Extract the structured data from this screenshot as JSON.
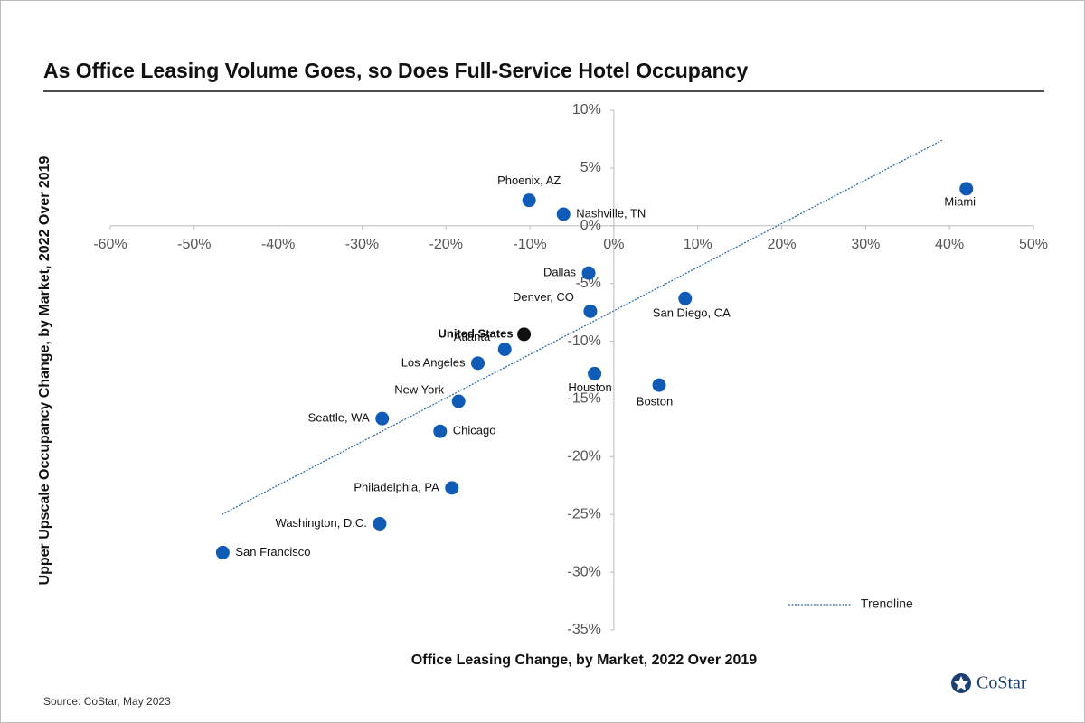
{
  "chart_data": {
    "type": "scatter",
    "title": "As Office Leasing Volume Goes, so Does Full-Service Hotel Occupancy",
    "x_label": "Office Leasing Change, by Market, 2022 Over 2019",
    "y_label": "Upper Upscale Occupancy Change, by Market, 2022 Over 2019",
    "source": "Source: CoStar, May 2023",
    "brand": "CoStar",
    "labels": [
      "Phoenix, AZ",
      "Nashville, TN",
      "Miami",
      "Dallas",
      "San Diego, CA",
      "Denver, CO",
      "United States",
      "Atlanta",
      "Los Angeles",
      "Houston",
      "Boston",
      "New York",
      "Seattle, WA",
      "Chicago",
      "Philadelphia, PA",
      "Washington, D.C.",
      "San Francisco"
    ],
    "x": [
      -10.1,
      -6.0,
      42.0,
      -3.0,
      8.5,
      -2.8,
      -10.7,
      -13.0,
      -16.2,
      -2.3,
      5.4,
      -18.5,
      -27.6,
      -20.7,
      -19.3,
      -27.9,
      -46.6
    ],
    "y": [
      2.2,
      1.0,
      3.2,
      -4.1,
      -6.3,
      -7.4,
      -9.4,
      -10.7,
      -11.9,
      -12.8,
      -13.8,
      -15.2,
      -16.7,
      -17.8,
      -22.7,
      -25.8,
      -28.3
    ],
    "colors": [
      "#0f5bb5",
      "#0f5bb5",
      "#0f5bb5",
      "#0f5bb5",
      "#0f5bb5",
      "#0f5bb5",
      "#111111",
      "#0f5bb5",
      "#0f5bb5",
      "#0f5bb5",
      "#0f5bb5",
      "#0f5bb5",
      "#0f5bb5",
      "#0f5bb5",
      "#0f5bb5",
      "#0f5bb5",
      "#0f5bb5"
    ],
    "trendline": {
      "name": "Trendline",
      "color": "#2f6fa8",
      "x": [
        -46.7,
        39.1
      ],
      "y": [
        -25.0,
        7.4
      ]
    },
    "xlim": [
      -60,
      50
    ],
    "xticks": [
      {
        "value": -60,
        "label": "-60%"
      },
      {
        "value": -50,
        "label": "-50%"
      },
      {
        "value": -40,
        "label": "-40%"
      },
      {
        "value": -30,
        "label": "-30%"
      },
      {
        "value": -20,
        "label": "-20%"
      },
      {
        "value": -10,
        "label": "-10%"
      },
      {
        "value": 0,
        "label": "0%"
      },
      {
        "value": 10,
        "label": "10%"
      },
      {
        "value": 20,
        "label": "20%"
      },
      {
        "value": 30,
        "label": "30%"
      },
      {
        "value": 40,
        "label": "40%"
      },
      {
        "value": 50,
        "label": "50%"
      }
    ],
    "ylim": [
      -35,
      10
    ],
    "yticks": [
      {
        "value": -35,
        "label": "-35%"
      },
      {
        "value": -30,
        "label": "-30%"
      },
      {
        "value": -25,
        "label": "-25%"
      },
      {
        "value": -20,
        "label": "-20%"
      },
      {
        "value": -15,
        "label": "-15%"
      },
      {
        "value": -10,
        "label": "-10%"
      },
      {
        "value": -5,
        "label": "-5%"
      },
      {
        "value": 0,
        "label": "0%"
      },
      {
        "value": 5,
        "label": "5%"
      },
      {
        "value": 10,
        "label": "10%"
      }
    ]
  }
}
